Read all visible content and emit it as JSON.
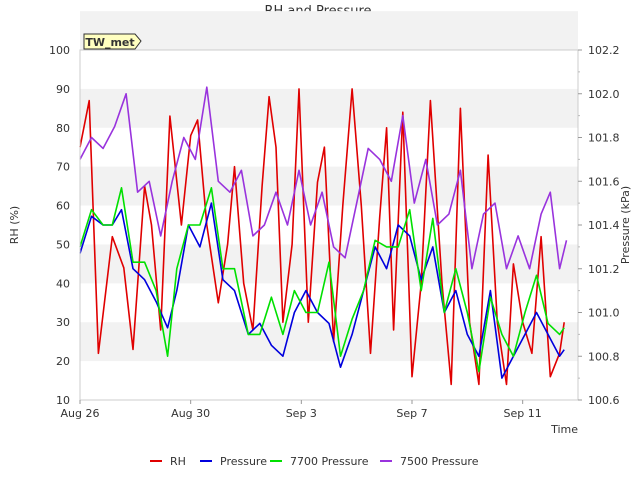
{
  "chart_data": {
    "type": "line",
    "title": "RH and Pressure",
    "badge": "TW_met",
    "xlabel": "Time",
    "ylabel": "RH (%)",
    "ylabel2": "Pressure (kPa)",
    "x_range": [
      "2020-08-26",
      "2020-09-13"
    ],
    "ylim": [
      10,
      100
    ],
    "ylim2": [
      100.6,
      102.2
    ],
    "yticks": [
      10,
      20,
      30,
      40,
      50,
      60,
      70,
      80,
      90,
      100
    ],
    "yticks2": [
      "100.6",
      "100.8",
      "101.0",
      "101.2",
      "101.4",
      "101.6",
      "101.8",
      "102.0",
      "102.2"
    ],
    "xticks": [
      {
        "date": "2020-08-26",
        "label": "Aug 26"
      },
      {
        "date": "2020-08-30",
        "label": "Aug 30"
      },
      {
        "date": "2020-09-03",
        "label": "Sep 3"
      },
      {
        "date": "2020-09-07",
        "label": "Sep 7"
      },
      {
        "date": "2020-09-11",
        "label": "Sep 11"
      }
    ],
    "grid": "horizontal-bands",
    "legend_position": "bottom",
    "series": [
      {
        "name": "RH",
        "axis": "left",
        "color": "#e00000",
        "points": [
          [
            "2020-08-26T00:00",
            75
          ],
          [
            "2020-08-26T08:00",
            87
          ],
          [
            "2020-08-26T16:00",
            22
          ],
          [
            "2020-08-27T04:00",
            52
          ],
          [
            "2020-08-27T14:00",
            44
          ],
          [
            "2020-08-27T22:00",
            23
          ],
          [
            "2020-08-28T08:00",
            65
          ],
          [
            "2020-08-28T14:00",
            55
          ],
          [
            "2020-08-28T22:00",
            28
          ],
          [
            "2020-08-29T06:00",
            83
          ],
          [
            "2020-08-29T16:00",
            55
          ],
          [
            "2020-08-30T00:00",
            78
          ],
          [
            "2020-08-30T06:00",
            82
          ],
          [
            "2020-08-30T14:00",
            55
          ],
          [
            "2020-08-31T00:00",
            35
          ],
          [
            "2020-08-31T08:00",
            50
          ],
          [
            "2020-08-31T14:00",
            70
          ],
          [
            "2020-08-31T22:00",
            40
          ],
          [
            "2020-09-01T06:00",
            28
          ],
          [
            "2020-09-01T14:00",
            65
          ],
          [
            "2020-09-01T20:00",
            88
          ],
          [
            "2020-09-02T02:00",
            75
          ],
          [
            "2020-09-02T08:00",
            30
          ],
          [
            "2020-09-02T16:00",
            50
          ],
          [
            "2020-09-02T22:00",
            90
          ],
          [
            "2020-09-03T06:00",
            30
          ],
          [
            "2020-09-03T14:00",
            66
          ],
          [
            "2020-09-03T20:00",
            75
          ],
          [
            "2020-09-04T04:00",
            25
          ],
          [
            "2020-09-04T12:00",
            60
          ],
          [
            "2020-09-04T20:00",
            90
          ],
          [
            "2020-09-05T04:00",
            60
          ],
          [
            "2020-09-05T12:00",
            22
          ],
          [
            "2020-09-05T20:00",
            57
          ],
          [
            "2020-09-06T02:00",
            80
          ],
          [
            "2020-09-06T08:00",
            28
          ],
          [
            "2020-09-06T16:00",
            84
          ],
          [
            "2020-09-07T00:00",
            16
          ],
          [
            "2020-09-07T08:00",
            40
          ],
          [
            "2020-09-07T16:00",
            87
          ],
          [
            "2020-09-08T02:00",
            40
          ],
          [
            "2020-09-08T10:00",
            14
          ],
          [
            "2020-09-08T18:00",
            85
          ],
          [
            "2020-09-09T02:00",
            30
          ],
          [
            "2020-09-09T10:00",
            14
          ],
          [
            "2020-09-09T18:00",
            73
          ],
          [
            "2020-09-10T02:00",
            30
          ],
          [
            "2020-09-10T10:00",
            14
          ],
          [
            "2020-09-10T16:00",
            45
          ],
          [
            "2020-09-11T00:00",
            30
          ],
          [
            "2020-09-11T08:00",
            22
          ],
          [
            "2020-09-11T16:00",
            52
          ],
          [
            "2020-09-12T00:00",
            16
          ],
          [
            "2020-09-12T08:00",
            22
          ],
          [
            "2020-09-12T12:00",
            30
          ]
        ]
      },
      {
        "name": "Pressure",
        "axis": "right",
        "color": "#0000dd",
        "points": [
          [
            "2020-08-26T00:00",
            101.27
          ],
          [
            "2020-08-26T10:00",
            101.44
          ],
          [
            "2020-08-26T20:00",
            101.4
          ],
          [
            "2020-08-27T04:00",
            101.4
          ],
          [
            "2020-08-27T12:00",
            101.47
          ],
          [
            "2020-08-27T22:00",
            101.2
          ],
          [
            "2020-08-28T08:00",
            101.15
          ],
          [
            "2020-08-28T18:00",
            101.05
          ],
          [
            "2020-08-29T04:00",
            100.93
          ],
          [
            "2020-08-29T12:00",
            101.1
          ],
          [
            "2020-08-29T22:00",
            101.4
          ],
          [
            "2020-08-30T08:00",
            101.3
          ],
          [
            "2020-08-30T18:00",
            101.5
          ],
          [
            "2020-08-31T04:00",
            101.15
          ],
          [
            "2020-08-31T14:00",
            101.1
          ],
          [
            "2020-09-01T02:00",
            100.9
          ],
          [
            "2020-09-01T12:00",
            100.95
          ],
          [
            "2020-09-01T22:00",
            100.85
          ],
          [
            "2020-09-02T08:00",
            100.8
          ],
          [
            "2020-09-02T18:00",
            101.0
          ],
          [
            "2020-09-03T04:00",
            101.1
          ],
          [
            "2020-09-03T14:00",
            101.0
          ],
          [
            "2020-09-04T00:00",
            100.95
          ],
          [
            "2020-09-04T10:00",
            100.75
          ],
          [
            "2020-09-04T20:00",
            100.9
          ],
          [
            "2020-09-05T06:00",
            101.1
          ],
          [
            "2020-09-05T16:00",
            101.3
          ],
          [
            "2020-09-06T02:00",
            101.2
          ],
          [
            "2020-09-06T12:00",
            101.4
          ],
          [
            "2020-09-06T22:00",
            101.35
          ],
          [
            "2020-09-07T08:00",
            101.15
          ],
          [
            "2020-09-07T18:00",
            101.3
          ],
          [
            "2020-09-08T04:00",
            101.0
          ],
          [
            "2020-09-08T14:00",
            101.1
          ],
          [
            "2020-09-09T00:00",
            100.9
          ],
          [
            "2020-09-09T10:00",
            100.8
          ],
          [
            "2020-09-09T20:00",
            101.1
          ],
          [
            "2020-09-10T06:00",
            100.7
          ],
          [
            "2020-09-10T16:00",
            100.8
          ],
          [
            "2020-09-11T02:00",
            100.9
          ],
          [
            "2020-09-11T12:00",
            101.0
          ],
          [
            "2020-09-11T22:00",
            100.9
          ],
          [
            "2020-09-12T08:00",
            100.8
          ],
          [
            "2020-09-12T12:00",
            100.83
          ]
        ]
      },
      {
        "name": "7700 Pressure",
        "axis": "right",
        "color": "#00e000",
        "points": [
          [
            "2020-08-26T00:00",
            101.3
          ],
          [
            "2020-08-26T10:00",
            101.47
          ],
          [
            "2020-08-26T20:00",
            101.4
          ],
          [
            "2020-08-27T04:00",
            101.4
          ],
          [
            "2020-08-27T12:00",
            101.57
          ],
          [
            "2020-08-27T22:00",
            101.23
          ],
          [
            "2020-08-28T08:00",
            101.23
          ],
          [
            "2020-08-28T18:00",
            101.1
          ],
          [
            "2020-08-29T04:00",
            100.8
          ],
          [
            "2020-08-29T12:00",
            101.2
          ],
          [
            "2020-08-29T22:00",
            101.4
          ],
          [
            "2020-08-30T08:00",
            101.4
          ],
          [
            "2020-08-30T18:00",
            101.57
          ],
          [
            "2020-08-31T04:00",
            101.2
          ],
          [
            "2020-08-31T14:00",
            101.2
          ],
          [
            "2020-09-01T02:00",
            100.9
          ],
          [
            "2020-09-01T12:00",
            100.9
          ],
          [
            "2020-09-01T22:00",
            101.07
          ],
          [
            "2020-09-02T08:00",
            100.9
          ],
          [
            "2020-09-02T18:00",
            101.1
          ],
          [
            "2020-09-03T04:00",
            101.0
          ],
          [
            "2020-09-03T14:00",
            101.0
          ],
          [
            "2020-09-04T00:00",
            101.23
          ],
          [
            "2020-09-04T10:00",
            100.8
          ],
          [
            "2020-09-04T20:00",
            100.97
          ],
          [
            "2020-09-05T06:00",
            101.1
          ],
          [
            "2020-09-05T16:00",
            101.33
          ],
          [
            "2020-09-06T02:00",
            101.3
          ],
          [
            "2020-09-06T12:00",
            101.3
          ],
          [
            "2020-09-06T22:00",
            101.47
          ],
          [
            "2020-09-07T08:00",
            101.1
          ],
          [
            "2020-09-07T18:00",
            101.43
          ],
          [
            "2020-09-08T04:00",
            101.0
          ],
          [
            "2020-09-08T14:00",
            101.2
          ],
          [
            "2020-09-09T00:00",
            101.0
          ],
          [
            "2020-09-09T10:00",
            100.73
          ],
          [
            "2020-09-09T20:00",
            101.07
          ],
          [
            "2020-09-10T06:00",
            100.9
          ],
          [
            "2020-09-10T16:00",
            100.8
          ],
          [
            "2020-09-11T02:00",
            101.0
          ],
          [
            "2020-09-11T12:00",
            101.17
          ],
          [
            "2020-09-11T22:00",
            100.95
          ],
          [
            "2020-09-12T08:00",
            100.9
          ],
          [
            "2020-09-12T12:00",
            100.93
          ]
        ]
      },
      {
        "name": "7500 Pressure",
        "axis": "right",
        "color": "#9933dd",
        "points": [
          [
            "2020-08-26T00:00",
            101.7
          ],
          [
            "2020-08-26T10:00",
            101.8
          ],
          [
            "2020-08-26T20:00",
            101.75
          ],
          [
            "2020-08-27T06:00",
            101.85
          ],
          [
            "2020-08-27T16:00",
            102.0
          ],
          [
            "2020-08-28T02:00",
            101.55
          ],
          [
            "2020-08-28T12:00",
            101.6
          ],
          [
            "2020-08-28T22:00",
            101.35
          ],
          [
            "2020-08-29T08:00",
            101.6
          ],
          [
            "2020-08-29T18:00",
            101.8
          ],
          [
            "2020-08-30T04:00",
            101.7
          ],
          [
            "2020-08-30T14:00",
            102.03
          ],
          [
            "2020-08-31T00:00",
            101.6
          ],
          [
            "2020-08-31T10:00",
            101.55
          ],
          [
            "2020-08-31T20:00",
            101.65
          ],
          [
            "2020-09-01T06:00",
            101.35
          ],
          [
            "2020-09-01T16:00",
            101.4
          ],
          [
            "2020-09-02T02:00",
            101.55
          ],
          [
            "2020-09-02T12:00",
            101.4
          ],
          [
            "2020-09-02T22:00",
            101.65
          ],
          [
            "2020-09-03T08:00",
            101.4
          ],
          [
            "2020-09-03T18:00",
            101.55
          ],
          [
            "2020-09-04T04:00",
            101.3
          ],
          [
            "2020-09-04T14:00",
            101.25
          ],
          [
            "2020-09-05T00:00",
            101.5
          ],
          [
            "2020-09-05T10:00",
            101.75
          ],
          [
            "2020-09-05T20:00",
            101.7
          ],
          [
            "2020-09-06T06:00",
            101.6
          ],
          [
            "2020-09-06T16:00",
            101.9
          ],
          [
            "2020-09-07T02:00",
            101.5
          ],
          [
            "2020-09-07T12:00",
            101.7
          ],
          [
            "2020-09-07T22:00",
            101.4
          ],
          [
            "2020-09-08T08:00",
            101.45
          ],
          [
            "2020-09-08T18:00",
            101.65
          ],
          [
            "2020-09-09T04:00",
            101.2
          ],
          [
            "2020-09-09T14:00",
            101.45
          ],
          [
            "2020-09-10T00:00",
            101.5
          ],
          [
            "2020-09-10T10:00",
            101.2
          ],
          [
            "2020-09-10T20:00",
            101.35
          ],
          [
            "2020-09-11T06:00",
            101.2
          ],
          [
            "2020-09-11T16:00",
            101.45
          ],
          [
            "2020-09-12T00:00",
            101.55
          ],
          [
            "2020-09-12T08:00",
            101.2
          ],
          [
            "2020-09-12T14:00",
            101.33
          ]
        ]
      }
    ]
  }
}
